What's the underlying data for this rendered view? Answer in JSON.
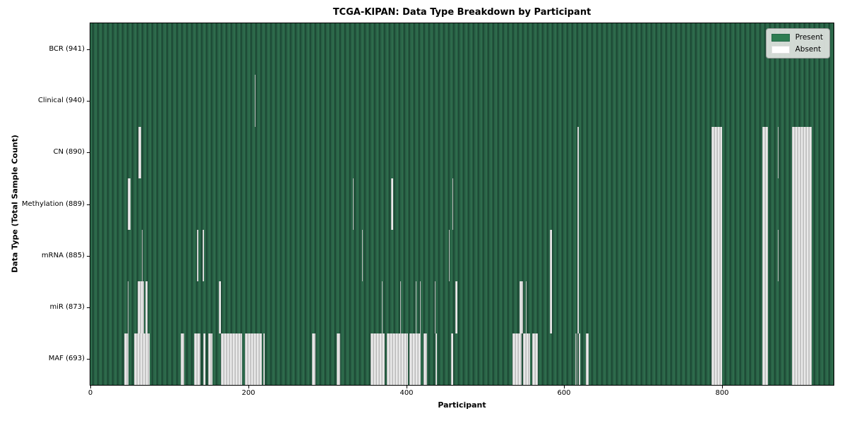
{
  "title": "TCGA-KIPAN: Data Type Breakdown by Participant",
  "x_axis_title": "Participant",
  "y_axis_title": "Data Type (Total Sample Count)",
  "legend": {
    "present_label": "Present",
    "absent_label": "Absent"
  },
  "colors": {
    "present_green": "#2a6347",
    "present_green_dark": "#1e4c37",
    "absent_gray": "#cdcdcd",
    "absent_white": "#e9e9e9",
    "legend_present_swatch": "#2e7d52",
    "legend_absent_swatch": "#ffffff",
    "legend_background": "#e1e4e1",
    "axis_color": "#000000"
  },
  "chart_data": {
    "type": "heatmap",
    "title": "TCGA-KIPAN: Data Type Breakdown by Participant",
    "xlabel": "Participant",
    "ylabel": "Data Type (Total Sample Count)",
    "x_range": [
      0,
      941
    ],
    "x_ticks": [
      0,
      200,
      400,
      600,
      800
    ],
    "legend_entries": [
      "Present",
      "Absent"
    ],
    "legend_position": "upper right",
    "value_encoding": {
      "present": "green",
      "absent": "white"
    },
    "rows": [
      {
        "label": "BCR (941)",
        "data_type": "BCR",
        "total_sample_count": 941,
        "absent_ranges": []
      },
      {
        "label": "Clinical (940)",
        "data_type": "Clinical",
        "total_sample_count": 940,
        "absent_ranges": [
          [
            208,
            209
          ]
        ]
      },
      {
        "label": "CN (890)",
        "data_type": "CN",
        "total_sample_count": 890,
        "absent_ranges": [
          [
            61,
            64
          ],
          [
            617,
            618
          ],
          [
            786,
            800
          ],
          [
            851,
            858
          ],
          [
            870,
            871
          ],
          [
            888,
            913
          ]
        ]
      },
      {
        "label": "Methylation (889)",
        "data_type": "Methylation",
        "total_sample_count": 889,
        "absent_ranges": [
          [
            47,
            51
          ],
          [
            332,
            333
          ],
          [
            381,
            383
          ],
          [
            458,
            459
          ],
          [
            617,
            618
          ],
          [
            786,
            800
          ],
          [
            851,
            858
          ],
          [
            888,
            913
          ]
        ]
      },
      {
        "label": "mRNA (885)",
        "data_type": "mRNA",
        "total_sample_count": 885,
        "absent_ranges": [
          [
            65,
            66
          ],
          [
            135,
            137
          ],
          [
            142,
            144
          ],
          [
            344,
            345
          ],
          [
            454,
            455
          ],
          [
            582,
            584
          ],
          [
            617,
            618
          ],
          [
            786,
            800
          ],
          [
            851,
            858
          ],
          [
            870,
            871
          ],
          [
            888,
            913
          ]
        ]
      },
      {
        "label": "miR (873)",
        "data_type": "miR",
        "total_sample_count": 873,
        "absent_ranges": [
          [
            47,
            48
          ],
          [
            60,
            68
          ],
          [
            70,
            72
          ],
          [
            163,
            165
          ],
          [
            369,
            370
          ],
          [
            392,
            393
          ],
          [
            412,
            413
          ],
          [
            417,
            418
          ],
          [
            436,
            437
          ],
          [
            462,
            465
          ],
          [
            543,
            548
          ],
          [
            551,
            552
          ],
          [
            582,
            584
          ],
          [
            617,
            618
          ],
          [
            786,
            800
          ],
          [
            851,
            858
          ],
          [
            888,
            913
          ]
        ]
      },
      {
        "label": "MAF (693)",
        "data_type": "MAF",
        "total_sample_count": 693,
        "absent_ranges": [
          [
            43,
            48
          ],
          [
            55,
            75
          ],
          [
            114,
            119
          ],
          [
            131,
            139
          ],
          [
            143,
            146
          ],
          [
            149,
            155
          ],
          [
            165,
            192
          ],
          [
            196,
            217
          ],
          [
            219,
            221
          ],
          [
            281,
            285
          ],
          [
            312,
            316
          ],
          [
            355,
            373
          ],
          [
            375,
            402
          ],
          [
            404,
            418
          ],
          [
            422,
            426
          ],
          [
            437,
            439
          ],
          [
            457,
            459
          ],
          [
            534,
            546
          ],
          [
            548,
            557
          ],
          [
            559,
            567
          ],
          [
            614,
            615
          ],
          [
            616,
            617
          ],
          [
            618,
            620
          ],
          [
            627,
            631
          ],
          [
            786,
            800
          ],
          [
            851,
            858
          ],
          [
            888,
            913
          ]
        ]
      }
    ]
  }
}
